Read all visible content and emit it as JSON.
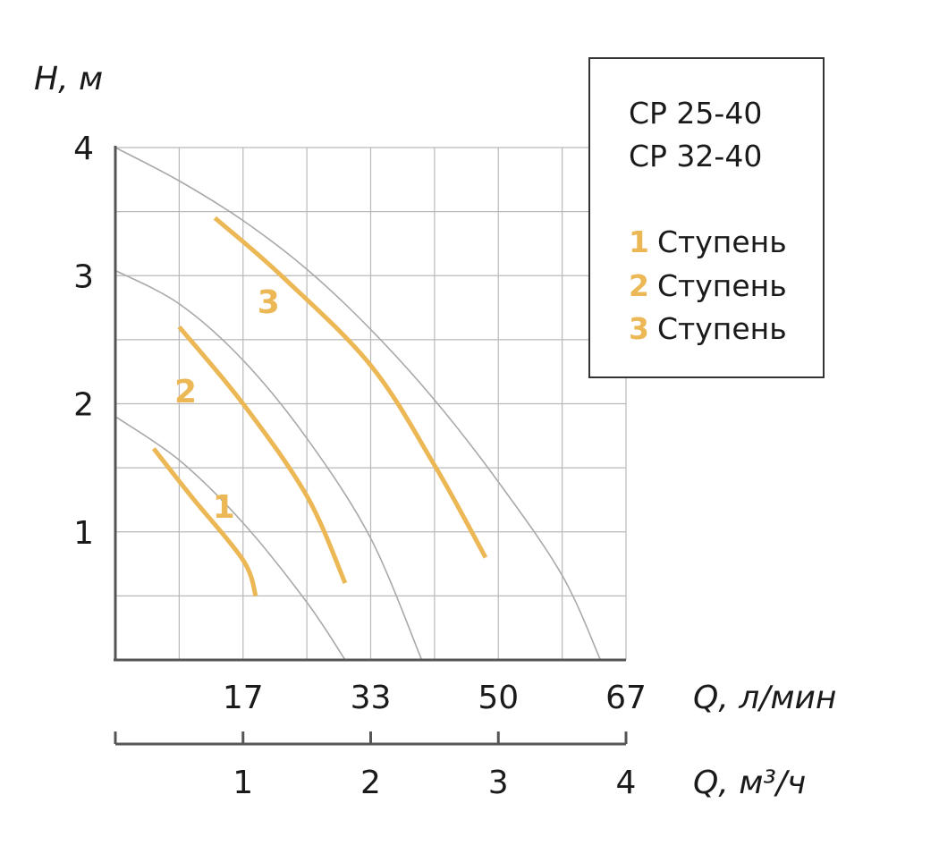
{
  "colors": {
    "accent": "#ecb755",
    "grid": "#b9b9b9",
    "axis": "#555555",
    "thin_curve": "#a9a9a9"
  },
  "models": [
    "CP 25-40",
    "CP 32-40"
  ],
  "legend": [
    {
      "number": "1",
      "label": "Ступень"
    },
    {
      "number": "2",
      "label": "Ступень"
    },
    {
      "number": "3",
      "label": "Ступень"
    }
  ],
  "chart_data": {
    "type": "line",
    "y_axis": {
      "title": "H, м",
      "ticks": [
        1,
        2,
        3,
        4
      ],
      "range": [
        0,
        4
      ]
    },
    "x_axis_primary": {
      "title": "Q, л/мин",
      "ticks": [
        17,
        33,
        50,
        67
      ],
      "tick_positions_m3h": [
        1,
        2,
        3,
        4
      ]
    },
    "x_axis_secondary": {
      "title": "Q, м³/ч",
      "ticks": [
        1,
        2,
        3,
        4
      ],
      "range": [
        0,
        4
      ]
    },
    "grid": true,
    "series": [
      {
        "name": "1",
        "curve": [
          [
            0,
            1.9
          ],
          [
            0.5,
            1.56
          ],
          [
            1.0,
            1.07
          ],
          [
            1.5,
            0.45
          ],
          [
            1.8,
            0.0
          ]
        ],
        "highlight": [
          [
            0.3,
            1.65
          ],
          [
            0.6,
            1.27
          ],
          [
            1.0,
            0.78
          ],
          [
            1.1,
            0.5
          ]
        ],
        "label_pos": [
          0.85,
          1.2
        ]
      },
      {
        "name": "2",
        "curve": [
          [
            0,
            3.04
          ],
          [
            0.5,
            2.78
          ],
          [
            1.0,
            2.34
          ],
          [
            1.5,
            1.73
          ],
          [
            2.0,
            0.95
          ],
          [
            2.4,
            0.0
          ]
        ],
        "highlight": [
          [
            0.5,
            2.6
          ],
          [
            1.0,
            2.0
          ],
          [
            1.5,
            1.28
          ],
          [
            1.8,
            0.6
          ]
        ],
        "label_pos": [
          0.55,
          2.1
        ]
      },
      {
        "name": "3",
        "curve": [
          [
            0,
            4.0
          ],
          [
            0.5,
            3.74
          ],
          [
            1.0,
            3.43
          ],
          [
            1.5,
            3.05
          ],
          [
            2.0,
            2.58
          ],
          [
            2.5,
            2.03
          ],
          [
            3.0,
            1.39
          ],
          [
            3.5,
            0.66
          ],
          [
            3.8,
            0.0
          ]
        ],
        "highlight": [
          [
            0.78,
            3.45
          ],
          [
            1.3,
            3.0
          ],
          [
            2.0,
            2.3
          ],
          [
            2.5,
            1.52
          ],
          [
            2.9,
            0.8
          ]
        ],
        "label_pos": [
          1.2,
          2.8
        ]
      }
    ]
  }
}
